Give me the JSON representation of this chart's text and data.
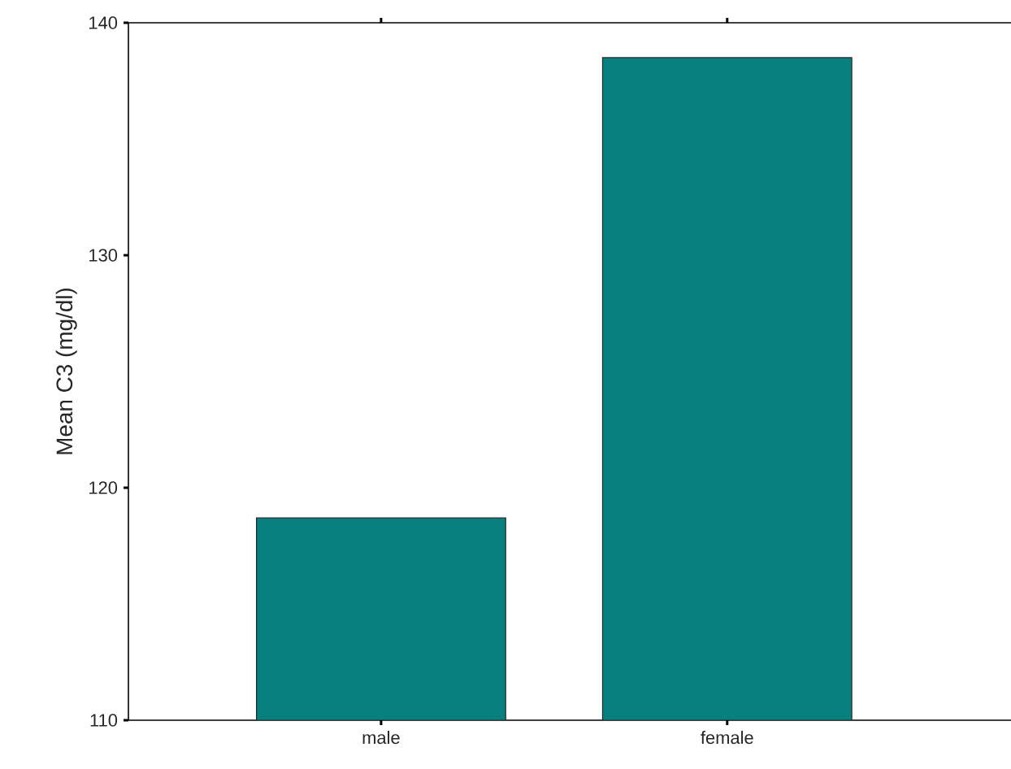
{
  "chart_data": {
    "type": "bar",
    "ylabel": "Mean C3 (mg/dl)",
    "categories": [
      "male",
      "female"
    ],
    "values": [
      118.7,
      138.5
    ],
    "color": "#088080",
    "ylim": [
      110,
      140
    ],
    "yticks": [
      110,
      120,
      130,
      140
    ],
    "grid": false
  }
}
